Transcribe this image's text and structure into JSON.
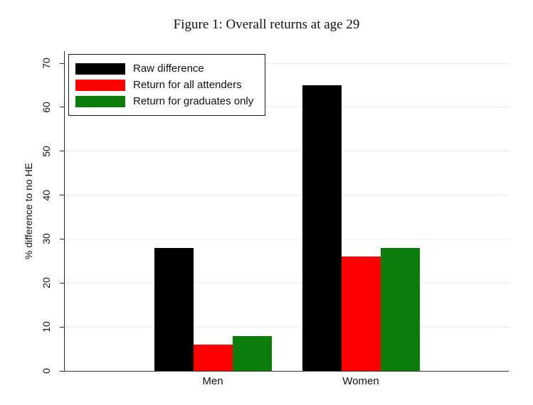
{
  "figure": {
    "title": "Figure 1: Overall returns at age 29"
  },
  "chart_data": {
    "type": "bar",
    "title": "Figure 1: Overall returns at age 29",
    "categories": [
      "Men",
      "Women"
    ],
    "series": [
      {
        "name": "Raw difference",
        "color": "#000000",
        "values": [
          28,
          65
        ]
      },
      {
        "name": "Return for all attenders",
        "color": "#ff0000",
        "values": [
          6,
          26
        ]
      },
      {
        "name": "Return for graduates only",
        "color": "#0a7d0a",
        "values": [
          8,
          28
        ]
      }
    ],
    "xlabel": "",
    "ylabel": "% difference to no HE",
    "ylim": [
      0,
      70
    ],
    "yticks": [
      0,
      10,
      20,
      30,
      40,
      50,
      60,
      70
    ],
    "grid": true,
    "gridline_color": "#e8f1f2",
    "legend_position": "top-left",
    "background": "#ffffff"
  }
}
